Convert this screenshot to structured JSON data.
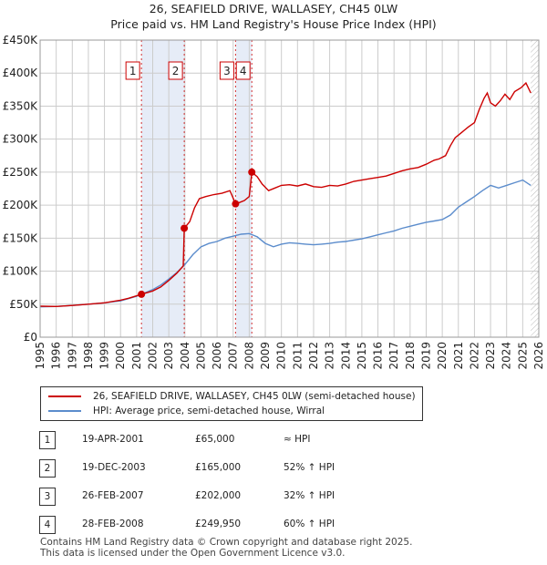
{
  "title_line1": "26, SEAFIELD DRIVE, WALLASEY, CH45 0LW",
  "title_line2": "Price paid vs. HM Land Registry's House Price Index (HPI)",
  "colors": {
    "property": "#cc0000",
    "hpi": "#5b8ccc",
    "shade": "#e6ecf7",
    "grid": "#cccccc"
  },
  "legend": {
    "property": "26, SEAFIELD DRIVE, WALLASEY, CH45 0LW (semi-detached house)",
    "hpi": "HPI: Average price, semi-detached house, Wirral"
  },
  "transactions": [
    {
      "num": "1",
      "date": "19-APR-2001",
      "price": "£65,000",
      "vs_hpi": "≈ HPI"
    },
    {
      "num": "2",
      "date": "19-DEC-2003",
      "price": "£165,000",
      "vs_hpi": "52% ↑ HPI"
    },
    {
      "num": "3",
      "date": "26-FEB-2007",
      "price": "£202,000",
      "vs_hpi": "32% ↑ HPI"
    },
    {
      "num": "4",
      "date": "28-FEB-2008",
      "price": "£249,950",
      "vs_hpi": "60% ↑ HPI"
    }
  ],
  "footer_line1": "Contains HM Land Registry data © Crown copyright and database right 2025.",
  "footer_line2": "This data is licensed under the Open Government Licence v3.0.",
  "chart_data": {
    "type": "line",
    "title": "26, SEAFIELD DRIVE, WALLASEY, CH45 0LW — Price paid vs. HM Land Registry's House Price Index (HPI)",
    "xlim": [
      1995,
      2026
    ],
    "ylim": [
      0,
      450000
    ],
    "y_ticks": [
      {
        "value": 0,
        "label": "£0"
      },
      {
        "value": 50000,
        "label": "£50K"
      },
      {
        "value": 100000,
        "label": "£100K"
      },
      {
        "value": 150000,
        "label": "£150K"
      },
      {
        "value": 200000,
        "label": "£200K"
      },
      {
        "value": 250000,
        "label": "£250K"
      },
      {
        "value": 300000,
        "label": "£300K"
      },
      {
        "value": 350000,
        "label": "£350K"
      },
      {
        "value": 400000,
        "label": "£400K"
      },
      {
        "value": 450000,
        "label": "£450K"
      }
    ],
    "x_ticks": [
      "1995",
      "1996",
      "1997",
      "1998",
      "1999",
      "2000",
      "2001",
      "2002",
      "2003",
      "2004",
      "2005",
      "2006",
      "2007",
      "2008",
      "2009",
      "2010",
      "2011",
      "2012",
      "2013",
      "2014",
      "2015",
      "2016",
      "2017",
      "2018",
      "2019",
      "2020",
      "2021",
      "2022",
      "2023",
      "2024",
      "2025",
      "2026"
    ],
    "shaded_ranges": [
      [
        2001.3,
        2003.96
      ],
      [
        2007.15,
        2008.16
      ]
    ],
    "future_hatch_from": 2025.5,
    "sales": [
      {
        "label": "1",
        "x": 2001.3,
        "y": 65000
      },
      {
        "label": "2",
        "x": 2003.96,
        "y": 165000
      },
      {
        "label": "3",
        "x": 2007.15,
        "y": 202000
      },
      {
        "label": "4",
        "x": 2008.16,
        "y": 249950
      }
    ],
    "series": [
      {
        "name": "26, SEAFIELD DRIVE, WALLASEY, CH45 0LW (semi-detached house)",
        "color": "#cc0000",
        "points": [
          [
            1995,
            47000
          ],
          [
            1996,
            46500
          ],
          [
            1997,
            48000
          ],
          [
            1998,
            50000
          ],
          [
            1999,
            52000
          ],
          [
            2000,
            56000
          ],
          [
            2000.5,
            59000
          ],
          [
            2001.3,
            65000
          ],
          [
            2002,
            70000
          ],
          [
            2002.5,
            76000
          ],
          [
            2003,
            86000
          ],
          [
            2003.5,
            97000
          ],
          [
            2003.9,
            108000
          ],
          [
            2003.96,
            165000
          ],
          [
            2004.3,
            175000
          ],
          [
            2004.6,
            196000
          ],
          [
            2004.9,
            210000
          ],
          [
            2005.3,
            213000
          ],
          [
            2005.8,
            216000
          ],
          [
            2006.3,
            218000
          ],
          [
            2006.8,
            222000
          ],
          [
            2007.15,
            202000
          ],
          [
            2007.4,
            204000
          ],
          [
            2007.7,
            207000
          ],
          [
            2008.0,
            213000
          ],
          [
            2008.16,
            249950
          ],
          [
            2008.5,
            243000
          ],
          [
            2008.8,
            232000
          ],
          [
            2009.2,
            222000
          ],
          [
            2009.6,
            226000
          ],
          [
            2010,
            230000
          ],
          [
            2010.5,
            231000
          ],
          [
            2011,
            229000
          ],
          [
            2011.5,
            232000
          ],
          [
            2012,
            228000
          ],
          [
            2012.5,
            227000
          ],
          [
            2013,
            230000
          ],
          [
            2013.5,
            229000
          ],
          [
            2014,
            232000
          ],
          [
            2014.5,
            236000
          ],
          [
            2015,
            238000
          ],
          [
            2015.5,
            240000
          ],
          [
            2016,
            242000
          ],
          [
            2016.5,
            244000
          ],
          [
            2017,
            248000
          ],
          [
            2017.5,
            252000
          ],
          [
            2018,
            255000
          ],
          [
            2018.5,
            257000
          ],
          [
            2019,
            262000
          ],
          [
            2019.5,
            268000
          ],
          [
            2019.8,
            270000
          ],
          [
            2020.2,
            275000
          ],
          [
            2020.5,
            290000
          ],
          [
            2020.8,
            302000
          ],
          [
            2021.2,
            310000
          ],
          [
            2021.6,
            318000
          ],
          [
            2022.0,
            325000
          ],
          [
            2022.3,
            345000
          ],
          [
            2022.6,
            362000
          ],
          [
            2022.8,
            370000
          ],
          [
            2023.0,
            355000
          ],
          [
            2023.3,
            350000
          ],
          [
            2023.6,
            358000
          ],
          [
            2023.9,
            368000
          ],
          [
            2024.2,
            360000
          ],
          [
            2024.5,
            372000
          ],
          [
            2024.9,
            378000
          ],
          [
            2025.2,
            385000
          ],
          [
            2025.5,
            370000
          ]
        ]
      },
      {
        "name": "HPI: Average price, semi-detached house, Wirral",
        "color": "#5b8ccc",
        "points": [
          [
            1995,
            46000
          ],
          [
            1996,
            46500
          ],
          [
            1997,
            48000
          ],
          [
            1998,
            50000
          ],
          [
            1999,
            52000
          ],
          [
            2000,
            55000
          ],
          [
            2001,
            62000
          ],
          [
            2002,
            72000
          ],
          [
            2002.5,
            79000
          ],
          [
            2003,
            88000
          ],
          [
            2003.5,
            98000
          ],
          [
            2004,
            110000
          ],
          [
            2004.5,
            125000
          ],
          [
            2005,
            137000
          ],
          [
            2005.5,
            142000
          ],
          [
            2006,
            145000
          ],
          [
            2006.5,
            150000
          ],
          [
            2007,
            153000
          ],
          [
            2007.5,
            156000
          ],
          [
            2008,
            157000
          ],
          [
            2008.5,
            152000
          ],
          [
            2009,
            142000
          ],
          [
            2009.5,
            137000
          ],
          [
            2010,
            141000
          ],
          [
            2010.5,
            143000
          ],
          [
            2011,
            142000
          ],
          [
            2011.5,
            141000
          ],
          [
            2012,
            140000
          ],
          [
            2012.5,
            141000
          ],
          [
            2013,
            142000
          ],
          [
            2013.5,
            144000
          ],
          [
            2014,
            145000
          ],
          [
            2014.5,
            147000
          ],
          [
            2015,
            149000
          ],
          [
            2015.5,
            152000
          ],
          [
            2016,
            155000
          ],
          [
            2016.5,
            158000
          ],
          [
            2017,
            161000
          ],
          [
            2017.5,
            165000
          ],
          [
            2018,
            168000
          ],
          [
            2018.5,
            171000
          ],
          [
            2019,
            174000
          ],
          [
            2019.5,
            176000
          ],
          [
            2020,
            178000
          ],
          [
            2020.5,
            185000
          ],
          [
            2021,
            197000
          ],
          [
            2021.5,
            205000
          ],
          [
            2022,
            213000
          ],
          [
            2022.5,
            222000
          ],
          [
            2023,
            230000
          ],
          [
            2023.5,
            226000
          ],
          [
            2024,
            230000
          ],
          [
            2024.5,
            234000
          ],
          [
            2025,
            238000
          ],
          [
            2025.5,
            230000
          ]
        ]
      }
    ]
  }
}
